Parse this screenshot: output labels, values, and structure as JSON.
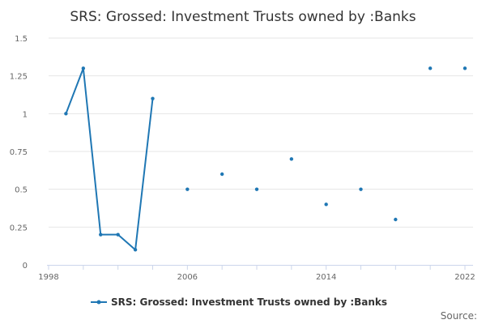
{
  "chart_data": {
    "type": "line",
    "title": "SRS: Grossed: Investment Trusts owned by :Banks",
    "xlabel": "",
    "ylabel": "",
    "xlim": [
      1998,
      2022
    ],
    "ylim": [
      0,
      1.5
    ],
    "x_ticks": [
      1998,
      2006,
      2014,
      2022
    ],
    "x_tick_labels": [
      "1998",
      "2006",
      "2014",
      "2022"
    ],
    "y_ticks": [
      0,
      0.25,
      0.5,
      0.75,
      1,
      1.25,
      1.5
    ],
    "y_tick_labels": [
      "0",
      "0.25",
      "0.5",
      "0.75",
      "1",
      "1.25",
      "1.5"
    ],
    "grid": true,
    "legend_position": "bottom-center",
    "series": [
      {
        "name": "SRS: Grossed: Investment Trusts owned by :Banks",
        "color": "#1f77b4",
        "x": [
          1999,
          2000,
          2001,
          2002,
          2003,
          2004,
          2006,
          2008,
          2010,
          2012,
          2014,
          2016,
          2018,
          2020,
          2022
        ],
        "y": [
          1.0,
          1.3,
          0.2,
          0.2,
          0.1,
          1.1,
          0.5,
          0.6,
          0.5,
          0.7,
          0.4,
          0.5,
          0.3,
          1.3,
          1.3
        ]
      }
    ],
    "source_label": "Source:"
  }
}
